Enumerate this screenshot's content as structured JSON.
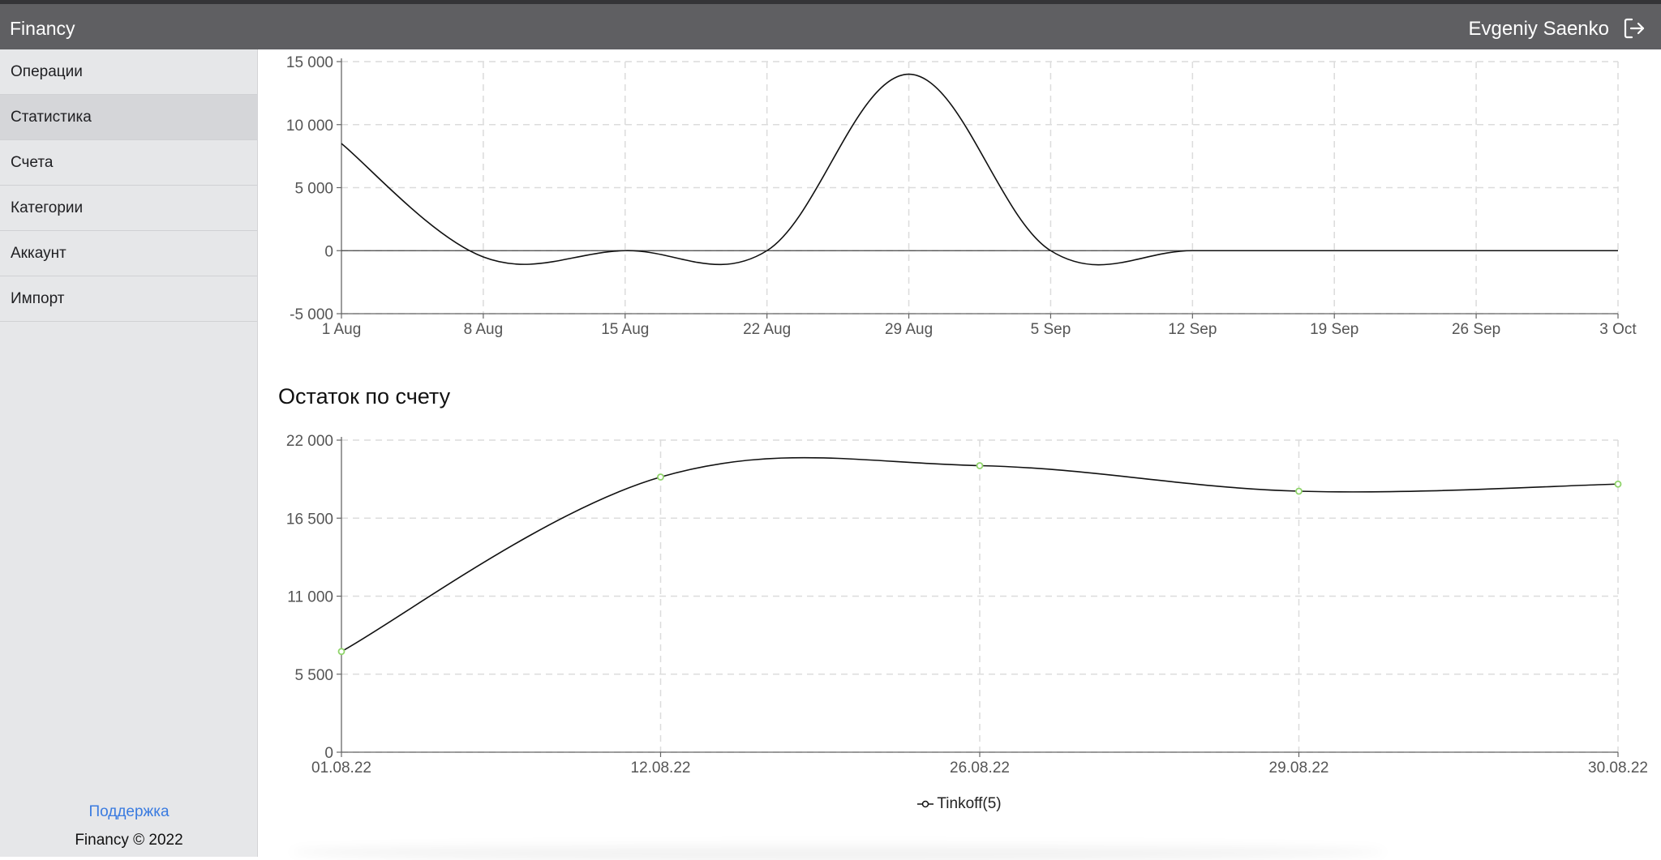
{
  "header": {
    "brand": "Financy",
    "user_name": "Evgeniy Saenko",
    "logout_icon": "logout-icon"
  },
  "sidebar": {
    "items": [
      {
        "label": "Операции",
        "active": false
      },
      {
        "label": "Статистика",
        "active": true
      },
      {
        "label": "Счета",
        "active": false
      },
      {
        "label": "Категории",
        "active": false
      },
      {
        "label": "Аккаунт",
        "active": false
      },
      {
        "label": "Импорт",
        "active": false
      }
    ],
    "support_label": "Поддержка",
    "copyright": "Financy © 2022"
  },
  "chart_data": [
    {
      "type": "line",
      "title": "",
      "x": [
        "1 Aug",
        "8 Aug",
        "15 Aug",
        "22 Aug",
        "29 Aug",
        "5 Sep",
        "12 Sep",
        "19 Sep",
        "26 Sep",
        "3 Oct"
      ],
      "xticks": [
        "1 Aug",
        "8 Aug",
        "15 Aug",
        "22 Aug",
        "29 Aug",
        "5 Sep",
        "12 Sep",
        "19 Sep",
        "26 Sep",
        "3 Oct"
      ],
      "yticks": [
        "15 000",
        "10 000",
        "5 000",
        "0",
        "-5 000"
      ],
      "ytick_values": [
        15000,
        10000,
        5000,
        0,
        -5000
      ],
      "ylim": [
        -5000,
        15000
      ],
      "series": [
        {
          "values": [
            8500,
            -500,
            0,
            0,
            14000,
            0,
            0,
            0,
            0,
            0
          ],
          "color": "#111111"
        }
      ],
      "grid": true
    },
    {
      "type": "line",
      "title": "Остаток по счету",
      "x": [
        "01.08.22",
        "12.08.22",
        "26.08.22",
        "29.08.22",
        "30.08.22"
      ],
      "xticks": [
        "01.08.22",
        "12.08.22",
        "26.08.22",
        "29.08.22",
        "30.08.22"
      ],
      "yticks": [
        "22 000",
        "16 500",
        "11 000",
        "5 500",
        "0"
      ],
      "ytick_values": [
        22000,
        16500,
        11000,
        5500,
        0
      ],
      "ylim": [
        0,
        22000
      ],
      "series": [
        {
          "name": "Tinkoff(5)",
          "values": [
            7100,
            19400,
            20200,
            18400,
            18900
          ],
          "color": "#111111",
          "point_color": "#8fd46a"
        }
      ],
      "legend": "bottom-center",
      "grid": true
    }
  ]
}
